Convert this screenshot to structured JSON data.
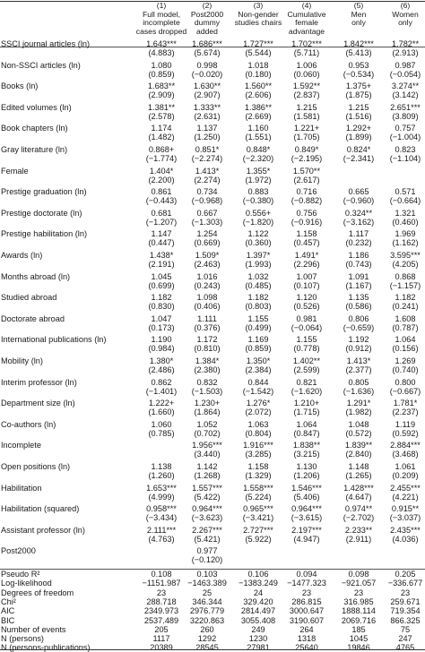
{
  "headers": [
    {
      "num": "(1)",
      "lines": [
        "Full model,",
        "incomplete",
        "cases dropped"
      ]
    },
    {
      "num": "(2)",
      "lines": [
        "Post2000",
        "dummy",
        "added"
      ]
    },
    {
      "num": "(3)",
      "lines": [
        "Non-gender",
        "studies chairs"
      ]
    },
    {
      "num": "(4)",
      "lines": [
        "Cumulative",
        "female",
        "advantage"
      ]
    },
    {
      "num": "(5)",
      "lines": [
        "Men",
        "only"
      ]
    },
    {
      "num": "(6)",
      "lines": [
        "Women",
        "only"
      ]
    }
  ],
  "rows": [
    {
      "label": "SSCI journal articles (ln)",
      "coef": [
        "1.643***",
        "1.686***",
        "1.727***",
        "1.702***",
        "1.842***",
        "1.782**"
      ],
      "z": [
        "(4.883)",
        "(5.674)",
        "(5.544)",
        "(5.711)",
        "(5.413)",
        "(2.913)"
      ]
    },
    {
      "label": "Non-SSCI articles (ln)",
      "coef": [
        "1.080",
        "0.998",
        "1.018",
        "1.006",
        "0.953",
        "0.987"
      ],
      "z": [
        "(0.859)",
        "(−0.020)",
        "(0.180)",
        "(0.060)",
        "(−0.534)",
        "(−0.054)"
      ]
    },
    {
      "label": "Books (ln)",
      "coef": [
        "1.683**",
        "1.630**",
        "1.560**",
        "1.592**",
        "1.375+",
        "3.274**"
      ],
      "z": [
        "(2.909)",
        "(2.907)",
        "(2.606)",
        "(2.837)",
        "(1.875)",
        "(3.142)"
      ]
    },
    {
      "label": "Edited volumes (ln)",
      "coef": [
        "1.381**",
        "1.333**",
        "1.386**",
        "1.215",
        "1.215",
        "2.651***"
      ],
      "z": [
        "(2.578)",
        "(2.631)",
        "(2.669)",
        "(1.581)",
        "(1.516)",
        "(3.809)"
      ]
    },
    {
      "label": "Book chapters (ln)",
      "coef": [
        "1.174",
        "1.137",
        "1.160",
        "1.221+",
        "1.292+",
        "0.757"
      ],
      "z": [
        "(1.482)",
        "(1.250)",
        "(1.551)",
        "(1.705)",
        "(1.899)",
        "(−1.004)"
      ]
    },
    {
      "label": "Gray literature (ln)",
      "coef": [
        "0.868+",
        "0.851*",
        "0.848*",
        "0.849*",
        "0.824*",
        "0.823"
      ],
      "z": [
        "(−1.774)",
        "(−2.274)",
        "(−2.320)",
        "(−2.195)",
        "(−2.341)",
        "(−1.104)"
      ]
    },
    {
      "label": "Female",
      "coef": [
        "1.404*",
        "1.413*",
        "1.355*",
        "1.570**",
        "",
        ""
      ],
      "z": [
        "(2.200)",
        "(2.274)",
        "(1.972)",
        "(2.617)",
        "",
        ""
      ]
    },
    {
      "label": "Prestige graduation (ln)",
      "coef": [
        "0.861",
        "0.734",
        "0.883",
        "0.716",
        "0.665",
        "0.571"
      ],
      "z": [
        "(−0.443)",
        "(−0.968)",
        "(−0.380)",
        "(−0.882)",
        "(−0.960)",
        "(−0.664)"
      ]
    },
    {
      "label": "Prestige doctorate (ln)",
      "coef": [
        "0.681",
        "0.667",
        "0.556+",
        "0.756",
        "0.324**",
        "1.321"
      ],
      "z": [
        "(−1.207)",
        "(−1.303)",
        "(−1.820)",
        "(−0.916)",
        "(−3.162)",
        "(0.460)"
      ]
    },
    {
      "label": "Prestige habilitation (ln)",
      "coef": [
        "1.147",
        "1.254",
        "1.122",
        "1.158",
        "1.117",
        "1.969"
      ],
      "z": [
        "(0.447)",
        "(0.669)",
        "(0.360)",
        "(0.457)",
        "(0.232)",
        "(1.162)"
      ]
    },
    {
      "label": "Awards (ln)",
      "coef": [
        "1.438*",
        "1.509*",
        "1.397*",
        "1.491*",
        "1.186",
        "3.595***"
      ],
      "z": [
        "(2.191)",
        "(2.463)",
        "(1.993)",
        "(2.296)",
        "(0.743)",
        "(4.205)"
      ]
    },
    {
      "label": "Months abroad (ln)",
      "coef": [
        "1.045",
        "1.016",
        "1.032",
        "1.007",
        "1.091",
        "0.868"
      ],
      "z": [
        "(0.699)",
        "(0.243)",
        "(0.485)",
        "(0.107)",
        "(1.167)",
        "(−1.157)"
      ]
    },
    {
      "label": "Studied abroad",
      "coef": [
        "1.182",
        "1.098",
        "1.182",
        "1.120",
        "1.135",
        "1.182"
      ],
      "z": [
        "(0.830)",
        "(0.406)",
        "(0.803)",
        "(0.526)",
        "(0.586)",
        "(0.241)"
      ]
    },
    {
      "label": "Doctorate abroad",
      "coef": [
        "1.047",
        "1.111",
        "1.155",
        "0.981",
        "0.806",
        "1.608"
      ],
      "z": [
        "(0.173)",
        "(0.376)",
        "(0.499)",
        "(−0.064)",
        "(−0.659)",
        "(0.787)"
      ]
    },
    {
      "label": "International publications (ln)",
      "coef": [
        "1.190",
        "1.172",
        "1.169",
        "1.155",
        "1.192",
        "1.064"
      ],
      "z": [
        "(0.984)",
        "(0.810)",
        "(0.859)",
        "(0.778)",
        "(0.912)",
        "(0.156)"
      ]
    },
    {
      "label": "Mobility (ln)",
      "coef": [
        "1.380*",
        "1.384*",
        "1.350*",
        "1.402**",
        "1.413*",
        "1.269"
      ],
      "z": [
        "(2.486)",
        "(2.380)",
        "(2.384)",
        "(2.599)",
        "(2.377)",
        "(0.740)"
      ]
    },
    {
      "label": "Interim professor (ln)",
      "coef": [
        "0.862",
        "0.832",
        "0.844",
        "0.821",
        "0.805",
        "0.800"
      ],
      "z": [
        "(−1.401)",
        "(−1.503)",
        "(−1.542)",
        "(−1.620)",
        "(−1.636)",
        "(−0.667)"
      ]
    },
    {
      "label": "Department size (ln)",
      "coef": [
        "1.222+",
        "1.230+",
        "1.276*",
        "1.210+",
        "1.291*",
        "1.781*"
      ],
      "z": [
        "(1.660)",
        "(1.864)",
        "(2.072)",
        "(1.715)",
        "(1.982)",
        "(2.237)"
      ]
    },
    {
      "label": "Co-authors (ln)",
      "coef": [
        "1.060",
        "1.052",
        "1.063",
        "1.064",
        "1.048",
        "1.119"
      ],
      "z": [
        "(0.785)",
        "(0.702)",
        "(0.804)",
        "(0.847)",
        "(0.572)",
        "(0.592)"
      ]
    },
    {
      "label": "Incomplete",
      "coef": [
        "",
        "1.956***",
        "1.916***",
        "1.838**",
        "1.839**",
        "2.884***"
      ],
      "z": [
        "",
        "(3.440)",
        "(3.285)",
        "(3.215)",
        "(2.840)",
        "(3.468)"
      ]
    },
    {
      "label": "Open positions (ln)",
      "coef": [
        "1.138",
        "1.142",
        "1.158",
        "1.130",
        "1.148",
        "1.061"
      ],
      "z": [
        "(1.260)",
        "(1.268)",
        "(1.329)",
        "(1.206)",
        "(1.265)",
        "(0.209)"
      ]
    },
    {
      "label": "Habilitation",
      "coef": [
        "1.653***",
        "1.557***",
        "1.558***",
        "1.546***",
        "1.428***",
        "2.455***"
      ],
      "z": [
        "(4.999)",
        "(5.422)",
        "(5.224)",
        "(5.406)",
        "(4.647)",
        "(4.221)"
      ]
    },
    {
      "label": "Habilitation (squared)",
      "coef": [
        "0.958***",
        "0.964***",
        "0.965***",
        "0.964***",
        "0.974**",
        "0.915**"
      ],
      "z": [
        "(−3.434)",
        "(−3.623)",
        "(−3.421)",
        "(−3.615)",
        "(−2.702)",
        "(−3.037)"
      ]
    },
    {
      "label": "Assistant professor (ln)",
      "coef": [
        "2.111***",
        "2.267***",
        "2.727***",
        "2.197***",
        "2.233**",
        "2.435***"
      ],
      "z": [
        "(4.763)",
        "(5.421)",
        "(5.922)",
        "(4.947)",
        "(2.911)",
        "(4.036)"
      ]
    },
    {
      "label": "Post2000",
      "coef": [
        "",
        "0.977",
        "",
        "",
        "",
        ""
      ],
      "z": [
        "",
        "(−0.120)",
        "",
        "",
        "",
        ""
      ]
    }
  ],
  "stats": [
    {
      "label": "Pseudo R²",
      "values": [
        "0.108",
        "0.103",
        "0.106",
        "0.094",
        "0.098",
        "0.205"
      ]
    },
    {
      "label": "Log-likelihood",
      "values": [
        "−1151.987",
        "−1463.389",
        "−1383.249",
        "−1477.323",
        "−921.057",
        "−336.677"
      ]
    },
    {
      "label": "Degrees of freedom",
      "values": [
        "23",
        "25",
        "24",
        "23",
        "23",
        "23"
      ]
    },
    {
      "label": "Chi²",
      "values": [
        "288.718",
        "346.344",
        "329.420",
        "286.815",
        "316.985",
        "259.671"
      ]
    },
    {
      "label": "AIC",
      "values": [
        "2349.973",
        "2976.779",
        "2814.497",
        "3000.647",
        "1888.114",
        "719.354"
      ]
    },
    {
      "label": "BIC",
      "values": [
        "2537.489",
        "3220.863",
        "3055.408",
        "3190.607",
        "2069.716",
        "866.325"
      ]
    },
    {
      "label": "Number of events",
      "values": [
        "205",
        "260",
        "249",
        "264",
        "185",
        "75"
      ]
    },
    {
      "label": "N (persons)",
      "values": [
        "1117",
        "1292",
        "1230",
        "1318",
        "1045",
        "247"
      ]
    },
    {
      "label": "N (persons-publications)",
      "values": [
        "20389",
        "28545",
        "27981",
        "25640",
        "19846",
        "4765"
      ]
    }
  ]
}
